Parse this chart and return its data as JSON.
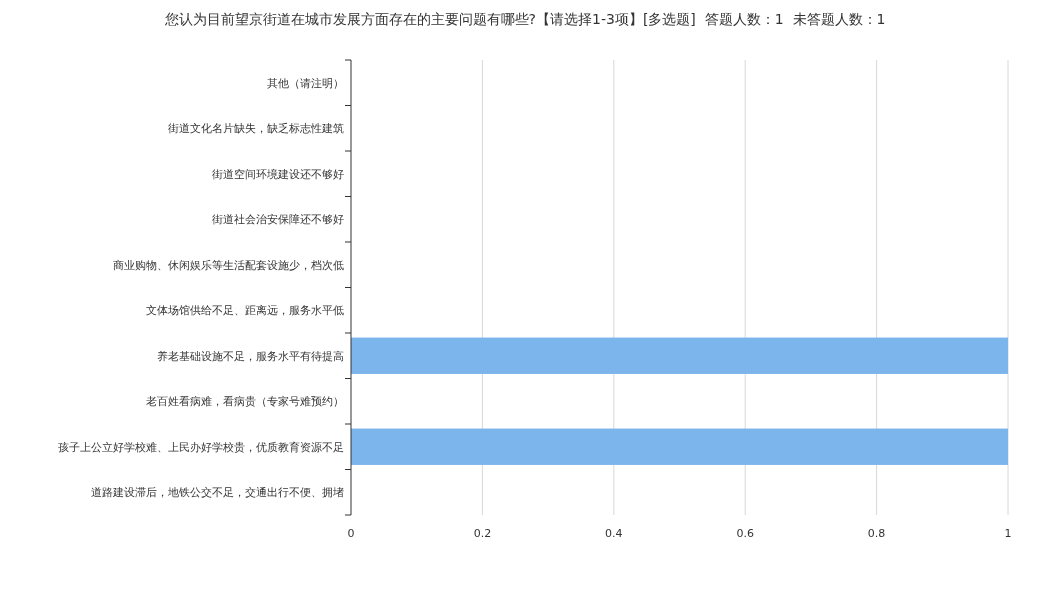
{
  "chart_data": {
    "type": "bar",
    "orientation": "horizontal",
    "title": "您认为目前望京街道在城市发展方面存在的主要问题有哪些?【请选择1-3项】[多选题]  答题人数：1  未答题人数：1",
    "categories": [
      "其他（请注明）",
      "街道文化名片缺失，缺乏标志性建筑",
      "街道空间环境建设还不够好",
      "街道社会治安保障还不够好",
      "商业购物、休闲娱乐等生活配套设施少，档次低",
      "文体场馆供给不足、距离远，服务水平低",
      "养老基础设施不足，服务水平有待提高",
      "老百姓看病难，看病贵（专家号难预约）",
      "孩子上公立好学校难、上民办好学校贵，优质教育资源不足",
      "道路建设滞后，地铁公交不足，交通出行不便、拥堵"
    ],
    "values": [
      0,
      0,
      0,
      0,
      0,
      0,
      1,
      0,
      1,
      0
    ],
    "color": "#7cb5ec",
    "xlim": [
      0,
      1
    ],
    "xticks": [
      0,
      0.2,
      0.4,
      0.6,
      0.8,
      1
    ],
    "grid": "x"
  }
}
